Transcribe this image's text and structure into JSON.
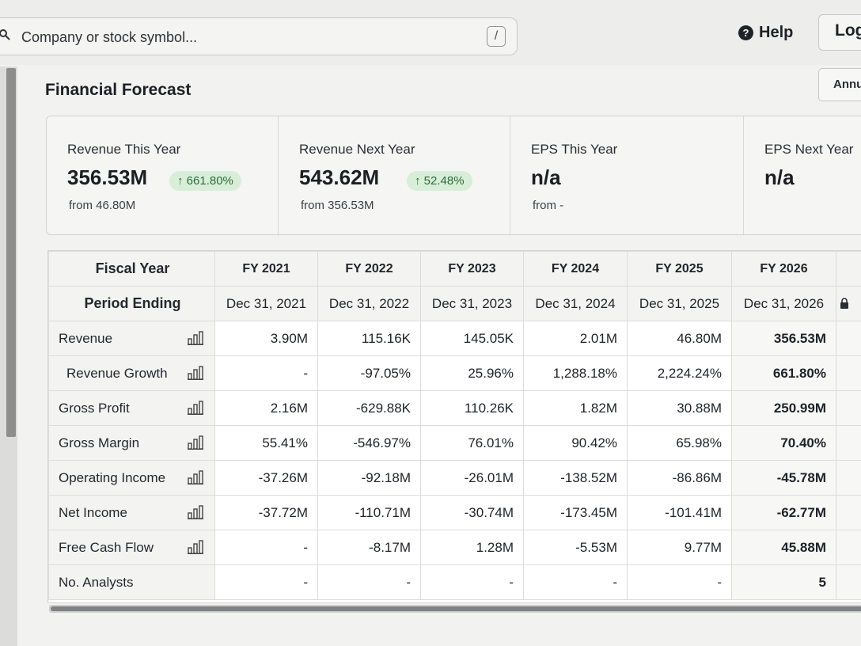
{
  "search": {
    "placeholder": "Company or stock symbol...",
    "shortcut": "/"
  },
  "header": {
    "help_label": "Help",
    "login_label": "Log"
  },
  "page": {
    "title": "Financial Forecast",
    "period_button": "Annu"
  },
  "summary_cards": [
    {
      "label": "Revenue This Year",
      "value": "356.53M",
      "change": "661.80%",
      "from": "from 46.80M"
    },
    {
      "label": "Revenue Next Year",
      "value": "543.62M",
      "change": "52.48%",
      "from": "from 356.53M"
    },
    {
      "label": "EPS This Year",
      "value": "n/a",
      "from": "from -"
    },
    {
      "label": "EPS Next Year",
      "value": "n/a"
    }
  ],
  "table": {
    "header_labels": {
      "fiscal_year": "Fiscal Year",
      "period_ending": "Period Ending"
    },
    "fiscal_years": [
      "FY 2021",
      "FY 2022",
      "FY 2023",
      "FY 2024",
      "FY 2025",
      "FY 2026"
    ],
    "period_endings": [
      "Dec 31, 2021",
      "Dec 31, 2022",
      "Dec 31, 2023",
      "Dec 31, 2024",
      "Dec 31, 2025",
      "Dec 31, 2026"
    ],
    "rows": [
      {
        "label": "Revenue",
        "values": [
          "3.90M",
          "115.16K",
          "145.05K",
          "2.01M",
          "46.80M",
          "356.53M"
        ]
      },
      {
        "label": "Revenue Growth",
        "values": [
          "-",
          "-97.05%",
          "25.96%",
          "1,288.18%",
          "2,224.24%",
          "661.80%"
        ]
      },
      {
        "label": "Gross Profit",
        "values": [
          "2.16M",
          "-629.88K",
          "110.26K",
          "1.82M",
          "30.88M",
          "250.99M"
        ]
      },
      {
        "label": "Gross Margin",
        "values": [
          "55.41%",
          "-546.97%",
          "76.01%",
          "90.42%",
          "65.98%",
          "70.40%"
        ]
      },
      {
        "label": "Operating Income",
        "values": [
          "-37.26M",
          "-92.18M",
          "-26.01M",
          "-138.52M",
          "-86.86M",
          "-45.78M"
        ]
      },
      {
        "label": "Net Income",
        "values": [
          "-37.72M",
          "-110.71M",
          "-30.74M",
          "-173.45M",
          "-101.41M",
          "-62.77M"
        ]
      },
      {
        "label": "Free Cash Flow",
        "values": [
          "-",
          "-8.17M",
          "1.28M",
          "-5.53M",
          "9.77M",
          "45.88M"
        ]
      },
      {
        "label": "No. Analysts",
        "values": [
          "-",
          "-",
          "-",
          "-",
          "-",
          "5"
        ]
      }
    ]
  },
  "colors": {
    "positive": "#2e6b3a",
    "negative": "#9a2f2f",
    "badge_bg": "#d8eed8"
  }
}
